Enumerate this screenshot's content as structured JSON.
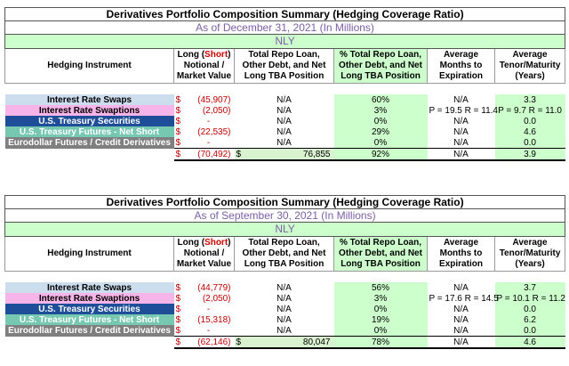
{
  "tables": [
    {
      "title": "Derivatives Portfolio Composition Summary (Hedging Coverage Ratio)",
      "date": "As of December 31, 2021 (In Millions)",
      "entity": "NLY",
      "headers": {
        "instrument": "Hedging Instrument",
        "long_a": "Long (",
        "short": "Short",
        "long_b": ") Notional / Market Value",
        "repo": "Total Repo Loan, Other Debt, and Net Long TBA Position",
        "pct": "% Total Repo Loan, Other Debt, and Net Long TBA Position",
        "months": "Average Months to Expiration",
        "tenor": "Average Tenor/Maturity (Years)"
      },
      "rows": [
        {
          "name": "Interest Rate Swaps",
          "dollar": "$",
          "amount": "(45,907)",
          "repo": "N/A",
          "pct": "60%",
          "months": "N/A",
          "tenor": "3.3"
        },
        {
          "name": "Interest Rate Swaptions",
          "dollar": "$",
          "amount": "(2,050)",
          "repo": "N/A",
          "pct": "3%",
          "months": "P = 19.5  R = 11.4",
          "tenor": "P = 9.7  R = 11.0"
        },
        {
          "name": "U.S. Treasury Securities",
          "dollar": "$",
          "amount": "-",
          "repo": "N/A",
          "pct": "0%",
          "months": "N/A",
          "tenor": "0.0"
        },
        {
          "name": "U.S. Treasury Futures - Net Short",
          "dollar": "$",
          "amount": "(22,535)",
          "repo": "N/A",
          "pct": "29%",
          "months": "N/A",
          "tenor": "4.6"
        },
        {
          "name": "Eurodollar Futures / Credit Derivatives",
          "dollar": "$",
          "amount": "-",
          "repo": "N/A",
          "pct": "0%",
          "months": "N/A",
          "tenor": "0.0"
        }
      ],
      "total": {
        "dollar": "$",
        "amount": "(70,492)",
        "repo_dollar": "$",
        "repo": "76,855",
        "pct": "92%",
        "months": "N/A",
        "tenor": "3.9"
      }
    },
    {
      "title": "Derivatives Portfolio Composition Summary (Hedging Coverage Ratio)",
      "date": "As of September 30, 2021 (In Millions)",
      "entity": "NLY",
      "headers": {
        "instrument": "Hedging Instrument",
        "long_a": "Long (",
        "short": "Short",
        "long_b": ") Notional / Market Value",
        "repo": "Total Repo Loan, Other Debt, and Net Long TBA Position",
        "pct": "% Total Repo Loan, Other Debt, and Net Long TBA Position",
        "months": "Average Months to Expiration",
        "tenor": "Average Tenor/Maturity (Years)"
      },
      "rows": [
        {
          "name": "Interest Rate Swaps",
          "dollar": "$",
          "amount": "(44,779)",
          "repo": "N/A",
          "pct": "56%",
          "months": "N/A",
          "tenor": "3.7"
        },
        {
          "name": "Interest Rate Swaptions",
          "dollar": "$",
          "amount": "(2,050)",
          "repo": "N/A",
          "pct": "3%",
          "months": "P = 17.6  R = 14.5",
          "tenor": "P = 10.1  R = 11.2"
        },
        {
          "name": "U.S. Treasury Securities",
          "dollar": "$",
          "amount": "-",
          "repo": "N/A",
          "pct": "0%",
          "months": "N/A",
          "tenor": "0.0"
        },
        {
          "name": "U.S. Treasury Futures - Net Short",
          "dollar": "$",
          "amount": "(15,318)",
          "repo": "N/A",
          "pct": "19%",
          "months": "N/A",
          "tenor": "6.2"
        },
        {
          "name": "Eurodollar Futures / Credit Derivatives",
          "dollar": "$",
          "amount": "-",
          "repo": "N/A",
          "pct": "0%",
          "months": "N/A",
          "tenor": "0.0"
        }
      ],
      "total": {
        "dollar": "$",
        "amount": "(62,146)",
        "repo_dollar": "$",
        "repo": "80,047",
        "pct": "78%",
        "months": "N/A",
        "tenor": "4.6"
      }
    }
  ]
}
